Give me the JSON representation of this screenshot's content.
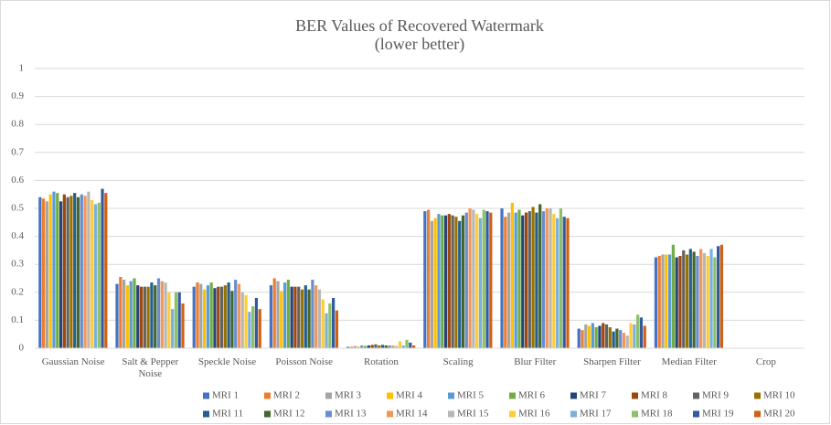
{
  "chart_data": {
    "type": "bar",
    "title": "BER Values of Recovered Watermark",
    "subtitle": "(lower better)",
    "categories": [
      "Gaussian Noise",
      "Salt & Pepper Noise",
      "Speckle Noise",
      "Poisson Noise",
      "Rotation",
      "Scaling",
      "Blur Filter",
      "Sharpen Filter",
      "Median Filter",
      "Crop"
    ],
    "ylim": [
      0,
      1
    ],
    "yticks": [
      0,
      0.1,
      0.2,
      0.3,
      0.4,
      0.5,
      0.6,
      0.7,
      0.8,
      0.9,
      1
    ],
    "grid": true,
    "legend": "bottom",
    "series": [
      {
        "name": "MRI 1",
        "color": "#4472c4",
        "values": [
          0.54,
          0.23,
          0.22,
          0.225,
          0.005,
          0.49,
          0.5,
          0.07,
          0.325,
          0
        ]
      },
      {
        "name": "MRI 2",
        "color": "#ed7d31",
        "values": [
          0.535,
          0.255,
          0.235,
          0.25,
          0.005,
          0.495,
          0.47,
          0.065,
          0.33,
          0
        ]
      },
      {
        "name": "MRI 3",
        "color": "#a5a5a5",
        "values": [
          0.525,
          0.245,
          0.23,
          0.24,
          0.008,
          0.455,
          0.485,
          0.085,
          0.335,
          0
        ]
      },
      {
        "name": "MRI 4",
        "color": "#ffc000",
        "values": [
          0.55,
          0.225,
          0.21,
          0.205,
          0.006,
          0.465,
          0.52,
          0.08,
          0.335,
          0
        ]
      },
      {
        "name": "MRI 5",
        "color": "#5b9bd5",
        "values": [
          0.56,
          0.24,
          0.225,
          0.235,
          0.01,
          0.48,
          0.485,
          0.09,
          0.335,
          0
        ]
      },
      {
        "name": "MRI 6",
        "color": "#70ad47",
        "values": [
          0.555,
          0.25,
          0.235,
          0.245,
          0.008,
          0.475,
          0.495,
          0.075,
          0.37,
          0
        ]
      },
      {
        "name": "MRI 7",
        "color": "#264478",
        "values": [
          0.525,
          0.225,
          0.215,
          0.22,
          0.01,
          0.475,
          0.475,
          0.08,
          0.325,
          0
        ]
      },
      {
        "name": "MRI 8",
        "color": "#9e480e",
        "values": [
          0.55,
          0.22,
          0.22,
          0.22,
          0.012,
          0.48,
          0.485,
          0.09,
          0.33,
          0
        ]
      },
      {
        "name": "MRI 9",
        "color": "#636363",
        "values": [
          0.54,
          0.22,
          0.22,
          0.22,
          0.014,
          0.475,
          0.49,
          0.085,
          0.35,
          0
        ]
      },
      {
        "name": "MRI 10",
        "color": "#997300",
        "values": [
          0.545,
          0.22,
          0.225,
          0.21,
          0.01,
          0.47,
          0.505,
          0.075,
          0.335,
          0
        ]
      },
      {
        "name": "MRI 11",
        "color": "#255e91",
        "values": [
          0.555,
          0.235,
          0.235,
          0.225,
          0.012,
          0.455,
          0.485,
          0.06,
          0.355,
          0
        ]
      },
      {
        "name": "MRI 12",
        "color": "#43682b",
        "values": [
          0.54,
          0.225,
          0.205,
          0.21,
          0.01,
          0.475,
          0.515,
          0.07,
          0.345,
          0
        ]
      },
      {
        "name": "MRI 13",
        "color": "#698ed0",
        "values": [
          0.55,
          0.25,
          0.245,
          0.245,
          0.01,
          0.485,
          0.49,
          0.065,
          0.33,
          0
        ]
      },
      {
        "name": "MRI 14",
        "color": "#f1975a",
        "values": [
          0.545,
          0.24,
          0.23,
          0.225,
          0.01,
          0.5,
          0.5,
          0.055,
          0.355,
          0
        ]
      },
      {
        "name": "MRI 15",
        "color": "#b7b7b7",
        "values": [
          0.56,
          0.235,
          0.2,
          0.21,
          0.008,
          0.495,
          0.5,
          0.045,
          0.34,
          0
        ]
      },
      {
        "name": "MRI 16",
        "color": "#ffcd33",
        "values": [
          0.53,
          0.2,
          0.19,
          0.175,
          0.025,
          0.48,
          0.48,
          0.09,
          0.33,
          0
        ]
      },
      {
        "name": "MRI 17",
        "color": "#7cafdd",
        "values": [
          0.515,
          0.14,
          0.13,
          0.125,
          0.01,
          0.465,
          0.465,
          0.085,
          0.355,
          0
        ]
      },
      {
        "name": "MRI 18",
        "color": "#8cc168",
        "values": [
          0.52,
          0.2,
          0.15,
          0.16,
          0.03,
          0.495,
          0.5,
          0.12,
          0.325,
          0
        ]
      },
      {
        "name": "MRI 19",
        "color": "#335aa1",
        "values": [
          0.57,
          0.2,
          0.18,
          0.18,
          0.02,
          0.49,
          0.47,
          0.11,
          0.365,
          0
        ]
      },
      {
        "name": "MRI 20",
        "color": "#d26012",
        "values": [
          0.555,
          0.16,
          0.14,
          0.135,
          0.01,
          0.485,
          0.465,
          0.08,
          0.37,
          0
        ]
      }
    ]
  }
}
